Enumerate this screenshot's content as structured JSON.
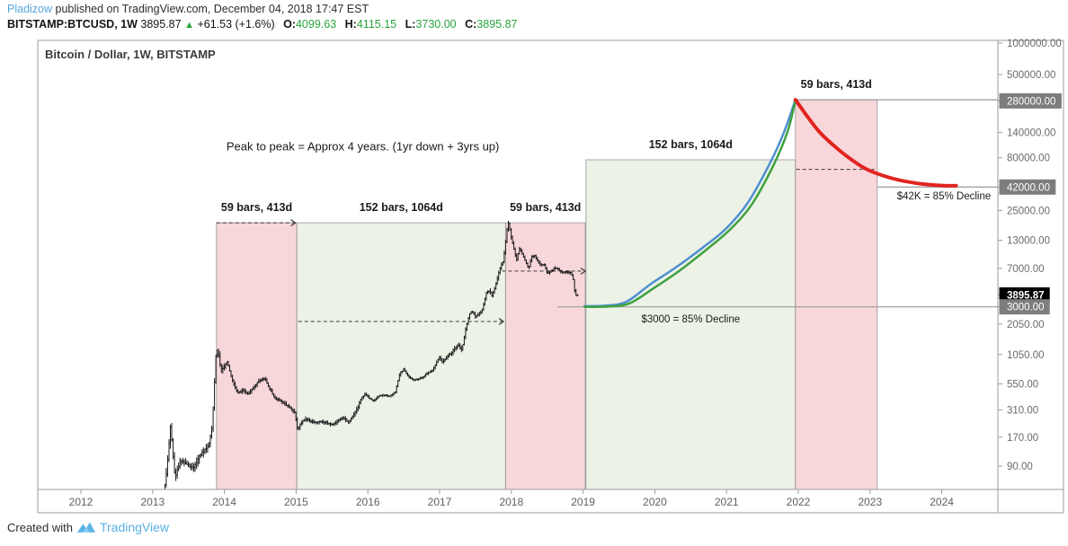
{
  "header": {
    "author": "Pladizow",
    "published": "published on TradingView.com, December 04, 2018 17:47 EST",
    "symbol": "BITSTAMP:BTCUSD, 1W",
    "last_price": "3895.87",
    "up_arrow": "▲",
    "change": "+61.53 (+1.6%)",
    "ohlc": [
      {
        "label": "O:",
        "value": "4099.63"
      },
      {
        "label": "H:",
        "value": "4115.15"
      },
      {
        "label": "L:",
        "value": "3730.00"
      },
      {
        "label": "C:",
        "value": "3895.87"
      }
    ]
  },
  "chart": {
    "title": "Bitcoin / Dollar, 1W, BITSTAMP"
  },
  "footer": {
    "created_with": "Created with",
    "brand": "TradingView"
  },
  "colors": {
    "link_blue": "#54a8da",
    "value_green": "#28a53c",
    "candle": "#161616",
    "projection_blue": "#4e8fd0",
    "projection_green": "#3fa13f",
    "projection_red": "#e22420",
    "region_pink": "#f8d7da",
    "region_green": "#edf2e7",
    "region_border": "#8c8c8c",
    "gray_line": "#9a9a9a",
    "dashed_line": "#3a3a3a",
    "axis_text": "#6a6a6a",
    "axis_label_bg": "#7d7d7d",
    "last_price_bg": "#000000",
    "brand_blue": "#58b2e2"
  },
  "chart_data": {
    "type": "candlestick",
    "title": "Bitcoin / Dollar, 1W, BITSTAMP",
    "x_axis": {
      "years": [
        2012,
        2013,
        2014,
        2015,
        2016,
        2017,
        2018,
        2019,
        2020,
        2021,
        2022,
        2023,
        2024
      ],
      "range": [
        2011.4,
        2024.78
      ]
    },
    "y_axis": {
      "scale": "log",
      "price_range": [
        54,
        1060000
      ],
      "ticks": [
        {
          "label": "1000000.00",
          "price": 1000000,
          "style": "normal"
        },
        {
          "label": "500000.00",
          "price": 500000,
          "style": "normal"
        },
        {
          "label": "280000.00",
          "price": 280000,
          "style": "gray"
        },
        {
          "label": "140000.00",
          "price": 140000,
          "style": "normal"
        },
        {
          "label": "80000.00",
          "price": 80000,
          "style": "normal"
        },
        {
          "label": "42000.00",
          "price": 42000,
          "style": "gray"
        },
        {
          "label": "25000.00",
          "price": 25000,
          "style": "normal"
        },
        {
          "label": "13000.00",
          "price": 13000,
          "style": "normal"
        },
        {
          "label": "7000.00",
          "price": 7000,
          "style": "normal"
        },
        {
          "label": "3895.87",
          "price": 3895.87,
          "style": "last"
        },
        {
          "label": "3000.00",
          "price": 3000,
          "style": "gray"
        },
        {
          "label": "2050.00",
          "price": 2050,
          "style": "normal"
        },
        {
          "label": "1050.00",
          "price": 1050,
          "style": "normal"
        },
        {
          "label": "550.00",
          "price": 550,
          "style": "normal"
        },
        {
          "label": "310.00",
          "price": 310,
          "style": "normal"
        },
        {
          "label": "170.00",
          "price": 170,
          "style": "normal"
        },
        {
          "label": "90.00",
          "price": 90,
          "style": "normal"
        }
      ]
    },
    "price_path": [
      [
        2013.17,
        45
      ],
      [
        2013.22,
        90
      ],
      [
        2013.27,
        230
      ],
      [
        2013.3,
        120
      ],
      [
        2013.33,
        70
      ],
      [
        2013.4,
        100
      ],
      [
        2013.5,
        95
      ],
      [
        2013.58,
        85
      ],
      [
        2013.65,
        105
      ],
      [
        2013.73,
        125
      ],
      [
        2013.8,
        140
      ],
      [
        2013.85,
        220
      ],
      [
        2013.9,
        1000
      ],
      [
        2013.93,
        1120
      ],
      [
        2013.97,
        750
      ],
      [
        2014.02,
        820
      ],
      [
        2014.06,
        900
      ],
      [
        2014.12,
        620
      ],
      [
        2014.2,
        450
      ],
      [
        2014.28,
        480
      ],
      [
        2014.35,
        440
      ],
      [
        2014.42,
        500
      ],
      [
        2014.5,
        590
      ],
      [
        2014.58,
        620
      ],
      [
        2014.65,
        500
      ],
      [
        2014.72,
        400
      ],
      [
        2014.8,
        380
      ],
      [
        2014.87,
        350
      ],
      [
        2014.93,
        330
      ],
      [
        2015.0,
        290
      ],
      [
        2015.04,
        200
      ],
      [
        2015.08,
        230
      ],
      [
        2015.15,
        255
      ],
      [
        2015.22,
        240
      ],
      [
        2015.3,
        235
      ],
      [
        2015.38,
        240
      ],
      [
        2015.45,
        230
      ],
      [
        2015.53,
        225
      ],
      [
        2015.6,
        245
      ],
      [
        2015.68,
        260
      ],
      [
        2015.75,
        235
      ],
      [
        2015.82,
        280
      ],
      [
        2015.88,
        330
      ],
      [
        2015.93,
        400
      ],
      [
        2015.98,
        440
      ],
      [
        2016.04,
        400
      ],
      [
        2016.1,
        380
      ],
      [
        2016.17,
        420
      ],
      [
        2016.24,
        430
      ],
      [
        2016.32,
        420
      ],
      [
        2016.4,
        455
      ],
      [
        2016.46,
        680
      ],
      [
        2016.52,
        760
      ],
      [
        2016.58,
        650
      ],
      [
        2016.65,
        600
      ],
      [
        2016.72,
        610
      ],
      [
        2016.78,
        630
      ],
      [
        2016.85,
        700
      ],
      [
        2016.92,
        740
      ],
      [
        2016.98,
        900
      ],
      [
        2017.02,
        1000
      ],
      [
        2017.06,
        890
      ],
      [
        2017.12,
        1000
      ],
      [
        2017.18,
        1080
      ],
      [
        2017.22,
        1180
      ],
      [
        2017.28,
        1300
      ],
      [
        2017.33,
        1150
      ],
      [
        2017.38,
        1800
      ],
      [
        2017.43,
        2500
      ],
      [
        2017.47,
        2700
      ],
      [
        2017.52,
        2400
      ],
      [
        2017.57,
        2550
      ],
      [
        2017.62,
        2900
      ],
      [
        2017.67,
        4100
      ],
      [
        2017.72,
        4300
      ],
      [
        2017.75,
        3800
      ],
      [
        2017.8,
        4900
      ],
      [
        2017.84,
        6200
      ],
      [
        2017.87,
        7400
      ],
      [
        2017.9,
        8000
      ],
      [
        2017.93,
        11000
      ],
      [
        2017.96,
        17000
      ],
      [
        2017.98,
        19200
      ],
      [
        2018.01,
        14500
      ],
      [
        2018.05,
        11000
      ],
      [
        2018.09,
        8300
      ],
      [
        2018.13,
        10800
      ],
      [
        2018.17,
        9800
      ],
      [
        2018.21,
        8300
      ],
      [
        2018.26,
        7000
      ],
      [
        2018.3,
        9100
      ],
      [
        2018.34,
        9300
      ],
      [
        2018.38,
        8400
      ],
      [
        2018.43,
        7500
      ],
      [
        2018.48,
        7600
      ],
      [
        2018.52,
        6300
      ],
      [
        2018.57,
        6500
      ],
      [
        2018.62,
        7100
      ],
      [
        2018.67,
        6900
      ],
      [
        2018.72,
        6400
      ],
      [
        2018.76,
        6500
      ],
      [
        2018.81,
        6400
      ],
      [
        2018.85,
        6350
      ],
      [
        2018.88,
        5600
      ],
      [
        2018.9,
        4300
      ],
      [
        2018.92,
        3900
      ]
    ],
    "regions": [
      {
        "label": "59 bars, 413d",
        "kind": "decline",
        "x0": 2013.89,
        "x1": 2015.01,
        "top_price": 19100
      },
      {
        "label": "152 bars, 1064d",
        "kind": "advance",
        "x0": 2015.01,
        "x1": 2017.92,
        "top_price": 19100
      },
      {
        "label": "59 bars, 413d",
        "kind": "decline",
        "x0": 2017.92,
        "x1": 2019.03,
        "top_price": 19100
      },
      {
        "label": "152 bars, 1064d",
        "kind": "advance",
        "x0": 2019.04,
        "x1": 2021.96,
        "top_price": 76500
      },
      {
        "label": "59 bars, 413d",
        "kind": "decline",
        "x0": 2021.96,
        "x1": 2023.1,
        "top_price": 287000
      }
    ],
    "projections": [
      {
        "name": "projected-advance-blue",
        "color": "blue",
        "width": 2.5,
        "points": [
          [
            2019.02,
            3050
          ],
          [
            2019.3,
            3080
          ],
          [
            2019.6,
            3350
          ],
          [
            2019.95,
            5000
          ],
          [
            2020.3,
            7200
          ],
          [
            2020.7,
            11500
          ],
          [
            2021.0,
            17000
          ],
          [
            2021.3,
            30000
          ],
          [
            2021.6,
            70000
          ],
          [
            2021.8,
            140000
          ],
          [
            2021.96,
            287000
          ]
        ]
      },
      {
        "name": "projected-advance-green",
        "color": "green",
        "width": 2.5,
        "points": [
          [
            2019.02,
            3000
          ],
          [
            2019.35,
            3020
          ],
          [
            2019.65,
            3250
          ],
          [
            2020.0,
            4600
          ],
          [
            2020.35,
            6700
          ],
          [
            2020.75,
            11000
          ],
          [
            2021.05,
            16500
          ],
          [
            2021.35,
            28500
          ],
          [
            2021.65,
            67000
          ],
          [
            2021.85,
            142000
          ],
          [
            2021.96,
            283000
          ]
        ]
      },
      {
        "name": "projected-decline-red",
        "color": "red",
        "width": 4,
        "points": [
          [
            2021.96,
            287000
          ],
          [
            2022.1,
            210000
          ],
          [
            2022.3,
            140000
          ],
          [
            2022.55,
            97000
          ],
          [
            2022.8,
            72000
          ],
          [
            2023.0,
            60000
          ],
          [
            2023.35,
            50000
          ],
          [
            2023.7,
            45200
          ],
          [
            2024.0,
            43400
          ],
          [
            2024.2,
            43200
          ]
        ]
      }
    ],
    "hlines": [
      {
        "price": 287000,
        "x0": 2021.96,
        "x1": 2024.78
      },
      {
        "price": 42000,
        "x0": 2023.1,
        "x1": 2024.78
      },
      {
        "price": 3000,
        "x0": 2018.64,
        "x1": 2024.78
      }
    ],
    "dashed_lines": [
      {
        "price": 19100,
        "x0": 2013.89,
        "x1": 2014.99,
        "arrow": true
      },
      {
        "price": 2175,
        "x0": 2015.03,
        "x1": 2017.89,
        "arrow": true
      },
      {
        "price": 6590,
        "x0": 2017.87,
        "x1": 2019.03,
        "arrow": true
      },
      {
        "price": 62000,
        "x0": 2021.97,
        "x1": 2023.06,
        "arrow": false
      }
    ],
    "annotations": [
      {
        "text": "Peak to peak = Approx 4 years. (1yr down + 3yrs up)",
        "x": 2015.93,
        "price": 102000,
        "size": 13,
        "weight": 400
      },
      {
        "text": "$3000 = 85% Decline",
        "x": 2020.5,
        "price": 2300,
        "size": 11.5,
        "weight": 400
      },
      {
        "text": "$42K = 85% Decline",
        "x": 2024.03,
        "price": 34500,
        "size": 11.5,
        "weight": 400
      }
    ]
  }
}
